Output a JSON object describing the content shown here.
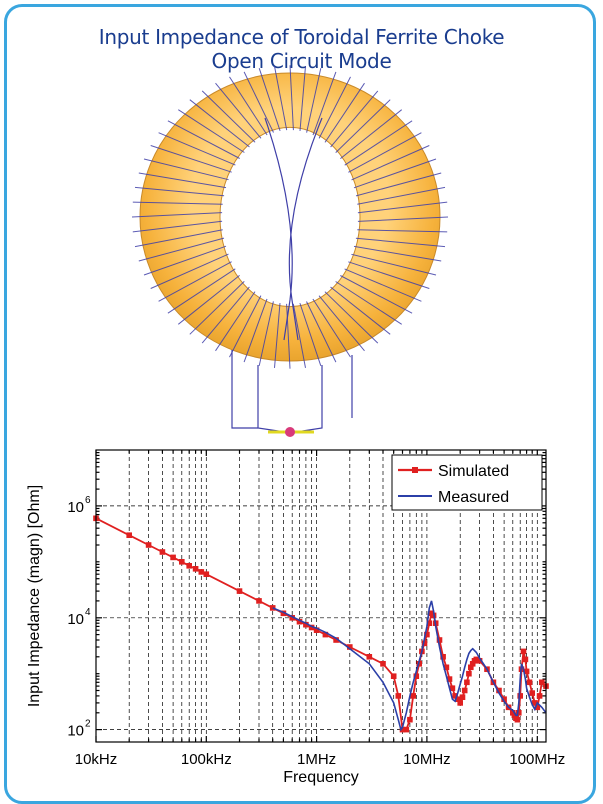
{
  "figure": {
    "title_line1": "Input Impedance of Toroidal Ferrite Choke",
    "title_line2": "Open Circuit Mode"
  },
  "colors": {
    "border": "#3aa6df",
    "title": "#1a3d8f",
    "ferrite": "#f6b23c",
    "winding": "#3f3fa8",
    "simulated": "#e02020",
    "measured": "#2b3fa8"
  },
  "illustration": {
    "name": "toroidal-ferrite-choke-model",
    "turns": 64
  },
  "chart_data": {
    "type": "line",
    "xscale": "log",
    "yscale": "log",
    "xlabel": "Frequency",
    "ylabel": "Input Impedance (magn) [Ohm]",
    "xlim": [
      10000,
      120000000
    ],
    "ylim": [
      60,
      10000000
    ],
    "grid": true,
    "legend_position": "top-right",
    "x_ticks": [
      {
        "value": 10000,
        "label": "10kHz"
      },
      {
        "value": 100000,
        "label": "100kHz"
      },
      {
        "value": 1000000,
        "label": "1MHz"
      },
      {
        "value": 10000000,
        "label": "10MHz"
      },
      {
        "value": 100000000,
        "label": "100MHz"
      }
    ],
    "y_ticks": [
      {
        "value": 100,
        "base": "10",
        "exp": "2"
      },
      {
        "value": 10000,
        "base": "10",
        "exp": "4"
      },
      {
        "value": 1000000,
        "base": "10",
        "exp": "6"
      }
    ],
    "series": [
      {
        "name": "Simulated",
        "marker": "square",
        "x": [
          10000,
          20000,
          30000,
          40000,
          50000,
          60000,
          70000,
          80000,
          90000,
          100000,
          200000,
          300000,
          400000,
          500000,
          600000,
          700000,
          800000,
          900000,
          1000000,
          1200000,
          1500000,
          2000000,
          3000000,
          4000000,
          5000000,
          5500000,
          6000000,
          6500000,
          7000000,
          7500000,
          8000000,
          8500000,
          9000000,
          9500000,
          10000000,
          10500000,
          11000000,
          11500000,
          12000000,
          13000000,
          14000000,
          15000000,
          16000000,
          17000000,
          18000000,
          19000000,
          20000000,
          21000000,
          22000000,
          23000000,
          24000000,
          25000000,
          26000000,
          27000000,
          28000000,
          30000000,
          35000000,
          40000000,
          45000000,
          50000000,
          55000000,
          60000000,
          62000000,
          64000000,
          66000000,
          68000000,
          70000000,
          72000000,
          75000000,
          78000000,
          80000000,
          85000000,
          90000000,
          95000000,
          100000000,
          105000000,
          110000000,
          120000000
        ],
        "y": [
          600000,
          300000,
          200000,
          150000,
          120000,
          100000,
          85000,
          75000,
          66000,
          60000,
          30000,
          20000,
          15000,
          12000,
          10000,
          8500,
          7500,
          6700,
          6000,
          5000,
          4000,
          3000,
          2000,
          1500,
          900,
          400,
          100,
          100,
          150,
          400,
          900,
          1500,
          2500,
          3500,
          5000,
          8000,
          12000,
          11000,
          8000,
          4000,
          2000,
          1300,
          800,
          550,
          400,
          350,
          300,
          380,
          500,
          700,
          1000,
          1300,
          1500,
          1700,
          1800,
          1700,
          1200,
          700,
          500,
          350,
          250,
          200,
          180,
          160,
          150,
          200,
          400,
          1200,
          2500,
          1800,
          1100,
          700,
          450,
          300,
          250,
          400,
          700,
          600
        ]
      },
      {
        "name": "Measured",
        "marker": "none",
        "x": [
          400000,
          500000,
          600000,
          700000,
          800000,
          900000,
          1000000,
          1200000,
          1500000,
          2000000,
          3000000,
          4000000,
          5000000,
          5500000,
          5800000,
          6000000,
          6500000,
          7000000,
          7500000,
          8000000,
          9000000,
          10000000,
          10500000,
          11000000,
          11500000,
          12000000,
          13000000,
          14000000,
          15000000,
          16000000,
          17000000,
          18000000,
          19000000,
          20000000,
          21000000,
          22000000,
          23000000,
          24000000,
          25000000,
          26000000,
          28000000,
          30000000,
          35000000,
          40000000,
          45000000,
          50000000,
          55000000,
          60000000,
          62000000,
          64000000,
          66000000,
          68000000,
          70000000,
          72000000,
          75000000,
          78000000,
          80000000,
          85000000,
          90000000,
          95000000,
          100000000,
          110000000,
          120000000
        ],
        "y": [
          15000,
          12500,
          10500,
          9000,
          8000,
          7000,
          6500,
          5500,
          4300,
          2800,
          1500,
          700,
          300,
          150,
          100,
          110,
          200,
          400,
          700,
          1100,
          2500,
          7000,
          15000,
          20000,
          13000,
          7000,
          3000,
          1500,
          900,
          550,
          350,
          320,
          450,
          650,
          900,
          1300,
          1800,
          2300,
          2600,
          2800,
          2400,
          1900,
          1200,
          700,
          450,
          320,
          250,
          220,
          200,
          180,
          180,
          300,
          800,
          1500,
          1200,
          800,
          550,
          380,
          280,
          230,
          300,
          250,
          200
        ]
      }
    ]
  }
}
